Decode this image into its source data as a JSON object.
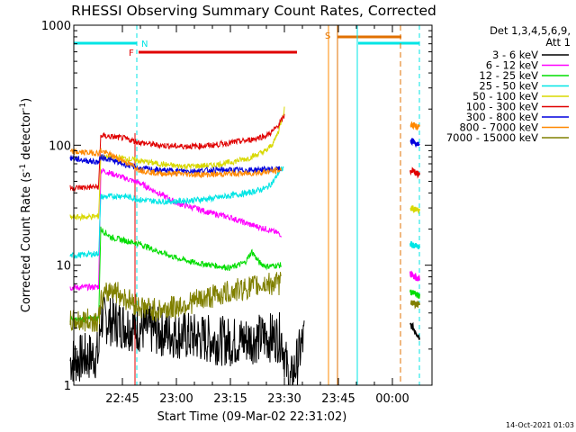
{
  "chart_data": {
    "type": "line",
    "title": "RHESSI Observing Summary Count Rates, Corrected",
    "xlabel": "Start Time (09-Mar-02 22:31:02)",
    "ylabel_main": "Corrected Count Rate (s",
    "ylabel_sup1": "-1",
    "ylabel_mid": " detector",
    "ylabel_sup2": "-1",
    "ylabel_end": ")",
    "y_scale": "log",
    "ylim": [
      1,
      1000
    ],
    "xlim_minutes": [
      -15,
      37
    ],
    "x_ticks": [
      {
        "label": "22:45",
        "minutes": -15
      },
      {
        "label": "23:00",
        "minutes": 0
      },
      {
        "label": "23:15",
        "minutes": 15
      },
      {
        "label": "23:30",
        "minutes": 30
      },
      {
        "label": "23:45",
        "minutes": 45
      },
      {
        "label": "00:00",
        "minutes": 60
      }
    ],
    "y_tick_labels": [
      {
        "label": "1",
        "value": 1
      },
      {
        "label": "10",
        "value": 10
      },
      {
        "label": "100",
        "value": 100
      },
      {
        "label": "1000",
        "value": 1000
      }
    ],
    "legend_header": [
      "Det 1,3,4,5,6,9,",
      "Att 1"
    ],
    "timestamp": "14-Oct-2021 01:03",
    "flags": [
      {
        "label": "N",
        "color": "#00e5e5"
      },
      {
        "label": "F",
        "color": "#e00000"
      },
      {
        "label": "S",
        "color": "#e07000"
      }
    ],
    "series": [
      {
        "name": "3 - 6 keV",
        "color": "#000000",
        "points": [
          [
            -29.5,
            1.6
          ],
          [
            -21.6,
            1.8
          ],
          [
            -21.0,
            3.6
          ],
          [
            -15,
            3.2
          ],
          [
            -5,
            2.8
          ],
          [
            5,
            2.5
          ],
          [
            15,
            2.3
          ],
          [
            25,
            2.5
          ],
          [
            29.2,
            2.5
          ],
          [
            31.5,
            1.0
          ],
          [
            35.5,
            2.5
          ]
        ],
        "post": [
          3.2,
          2.5
        ]
      },
      {
        "name": "6 - 12 keV",
        "color": "#ff00ff",
        "points": [
          [
            -29.5,
            6.5
          ],
          [
            -21.6,
            6.6
          ],
          [
            -21.0,
            62
          ],
          [
            -18,
            58
          ],
          [
            -10,
            48
          ],
          [
            -5,
            40
          ],
          [
            0,
            33
          ],
          [
            5,
            30
          ],
          [
            10,
            27
          ],
          [
            15,
            25
          ],
          [
            20,
            22
          ],
          [
            25,
            20
          ],
          [
            29.2,
            18
          ]
        ],
        "post": [
          8.5,
          7.5
        ]
      },
      {
        "name": "12 - 25 keV",
        "color": "#00dd00",
        "points": [
          [
            -29.5,
            3.5
          ],
          [
            -21.6,
            3.6
          ],
          [
            -21.0,
            20
          ],
          [
            -18,
            17
          ],
          [
            -10,
            15
          ],
          [
            -5,
            13
          ],
          [
            0,
            11.5
          ],
          [
            5,
            10.5
          ],
          [
            10,
            10
          ],
          [
            15,
            9.5
          ],
          [
            19,
            10.5
          ],
          [
            21,
            13
          ],
          [
            23,
            10.5
          ],
          [
            25,
            9.8
          ],
          [
            29.2,
            10
          ]
        ],
        "post": [
          6.0,
          5.5
        ]
      },
      {
        "name": "25 - 50 keV",
        "color": "#00e5e5",
        "points": [
          [
            -29.5,
            12
          ],
          [
            -21.6,
            12.5
          ],
          [
            -21.0,
            37
          ],
          [
            -15,
            38
          ],
          [
            -10,
            35
          ],
          [
            -5,
            34
          ],
          [
            0,
            34
          ],
          [
            5,
            35
          ],
          [
            10,
            36
          ],
          [
            15,
            38
          ],
          [
            20,
            40
          ],
          [
            25,
            44
          ],
          [
            27,
            50
          ],
          [
            28.5,
            60
          ],
          [
            29.8,
            65
          ]
        ],
        "post": [
          15,
          14
        ]
      },
      {
        "name": "50 - 100 keV",
        "color": "#d8d800",
        "points": [
          [
            -29.5,
            25
          ],
          [
            -21.6,
            25.5
          ],
          [
            -21.0,
            80
          ],
          [
            -15,
            78
          ],
          [
            -10,
            74
          ],
          [
            -5,
            70
          ],
          [
            0,
            67
          ],
          [
            5,
            67
          ],
          [
            10,
            68
          ],
          [
            15,
            72
          ],
          [
            20,
            78
          ],
          [
            25,
            90
          ],
          [
            27,
            105
          ],
          [
            28.5,
            135
          ],
          [
            30,
            200
          ]
        ],
        "post": [
          30,
          29
        ]
      },
      {
        "name": "100 - 300 keV",
        "color": "#e00000",
        "points": [
          [
            -29.5,
            44
          ],
          [
            -21.6,
            45
          ],
          [
            -21.0,
            120
          ],
          [
            -15,
            115
          ],
          [
            -10,
            105
          ],
          [
            -5,
            100
          ],
          [
            0,
            98
          ],
          [
            5,
            98
          ],
          [
            10,
            100
          ],
          [
            15,
            105
          ],
          [
            20,
            110
          ],
          [
            25,
            120
          ],
          [
            27,
            132
          ],
          [
            28.5,
            150
          ],
          [
            30,
            175
          ]
        ],
        "post": [
          62,
          58
        ]
      },
      {
        "name": "300 - 800 keV",
        "color": "#0000dd",
        "points": [
          [
            -29.5,
            78
          ],
          [
            -21.6,
            72
          ],
          [
            -21.0,
            80
          ],
          [
            -15,
            70
          ],
          [
            -10,
            64
          ],
          [
            -5,
            62
          ],
          [
            0,
            61
          ],
          [
            5,
            61
          ],
          [
            10,
            62
          ],
          [
            15,
            62
          ],
          [
            20,
            62
          ],
          [
            25,
            63
          ],
          [
            29.2,
            63
          ]
        ],
        "post": [
          110,
          100
        ]
      },
      {
        "name": "800 - 7000 keV",
        "color": "#ff8800",
        "points": [
          [
            -29.5,
            88
          ],
          [
            -21.6,
            86
          ],
          [
            -21.0,
            90
          ],
          [
            -15,
            75
          ],
          [
            -10,
            62
          ],
          [
            -5,
            58
          ],
          [
            0,
            58
          ],
          [
            5,
            57
          ],
          [
            10,
            57
          ],
          [
            15,
            58
          ],
          [
            20,
            58
          ],
          [
            25,
            60
          ],
          [
            29.2,
            62
          ]
        ],
        "post": [
          150,
          140
        ]
      },
      {
        "name": "7000 - 15000 keV",
        "color": "#808000",
        "points": [
          [
            -29.5,
            3.4
          ],
          [
            -21.6,
            3.5
          ],
          [
            -21.0,
            5.0
          ],
          [
            -18,
            6.5
          ],
          [
            -15,
            5.5
          ],
          [
            -10,
            4.5
          ],
          [
            -5,
            4.2
          ],
          [
            0,
            4.5
          ],
          [
            5,
            5
          ],
          [
            10,
            5.5
          ],
          [
            15,
            6
          ],
          [
            20,
            6.5
          ],
          [
            25,
            7
          ],
          [
            29.2,
            7
          ]
        ],
        "post": [
          5.0,
          4.6
        ]
      }
    ]
  }
}
